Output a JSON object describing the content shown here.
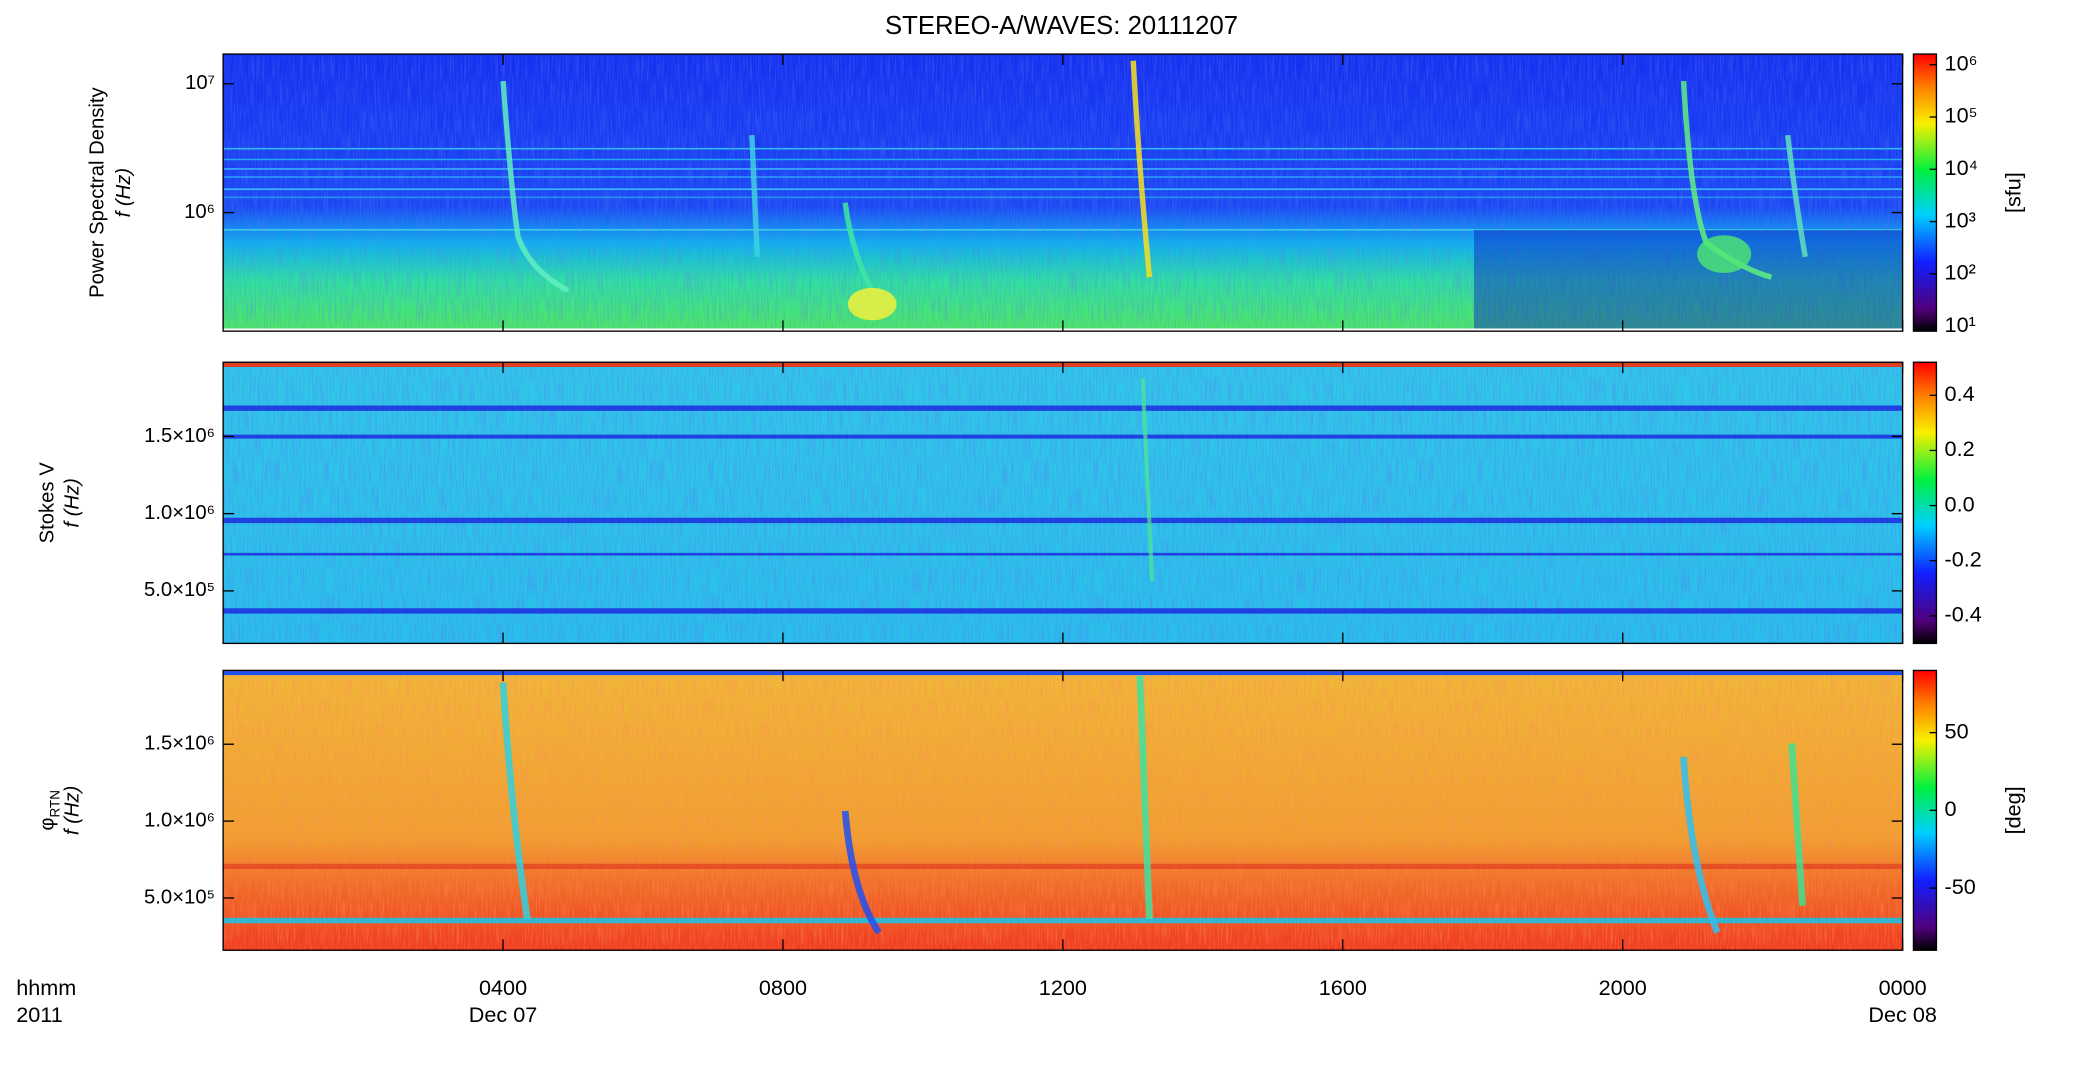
{
  "chart_data": [
    {
      "type": "spectrogram",
      "title": "STEREO-A/WAVES: 20111207",
      "ylabel": "Power Spectral Density",
      "ylabel2": "f (Hz)",
      "ylog": true,
      "ylim": [
        120000,
        17000000
      ],
      "yticks": [
        {
          "value": 1000000,
          "label": "10⁶"
        },
        {
          "value": 10000000,
          "label": "10⁷"
        }
      ],
      "clog": true,
      "clim": [
        8,
        1600000
      ],
      "cticks": [
        {
          "value": 10,
          "label": "10¹"
        },
        {
          "value": 100,
          "label": "10²"
        },
        {
          "value": 1000,
          "label": "10³"
        },
        {
          "value": 10000,
          "label": "10⁴"
        },
        {
          "value": 100000,
          "label": "10⁵"
        },
        {
          "value": 1000000,
          "label": "10⁶"
        }
      ],
      "clabel": "[sfu]"
    },
    {
      "type": "spectrogram",
      "ylabel": "Stokes V",
      "ylabel2": "f (Hz)",
      "ylog": false,
      "ylim": [
        160000,
        1980000
      ],
      "yticks": [
        {
          "value": 500000,
          "label": "5.0×10⁵"
        },
        {
          "value": 1000000,
          "label": "1.0×10⁶"
        },
        {
          "value": 1500000,
          "label": "1.5×10⁶"
        }
      ],
      "clog": false,
      "clim": [
        -0.5,
        0.52
      ],
      "cticks": [
        -0.4,
        -0.2,
        {
          "value": 0,
          "label": "0.0"
        },
        0.2,
        0.4
      ]
    },
    {
      "type": "spectrogram",
      "ylabel": "φ",
      "ylabel_sub": "RTN",
      "ylabel2": "f (Hz)",
      "ylog": false,
      "ylim": [
        160000,
        1980000
      ],
      "yticks": [
        {
          "value": 500000,
          "label": "5.0×10⁵"
        },
        {
          "value": 1000000,
          "label": "1.0×10⁶"
        },
        {
          "value": 1500000,
          "label": "1.5×10⁶"
        }
      ],
      "clog": false,
      "clim": [
        -90,
        90
      ],
      "cticks": [
        -50,
        0,
        50
      ],
      "clabel": "[deg]",
      "xlim": [
        0,
        24
      ],
      "xticks": [
        {
          "value": 4,
          "label": "0400"
        },
        {
          "value": 8,
          "label": "0800"
        },
        {
          "value": 12,
          "label": "1200"
        },
        {
          "value": 16,
          "label": "1600"
        },
        {
          "value": 20,
          "label": "2000"
        },
        {
          "value": 24,
          "label": "0000"
        }
      ],
      "xdates": [
        {
          "value": 4,
          "label": "Dec 07"
        },
        {
          "value": 24,
          "label": "Dec 08"
        }
      ],
      "xlabel": "hhmm",
      "xlabel2": "2011"
    }
  ]
}
